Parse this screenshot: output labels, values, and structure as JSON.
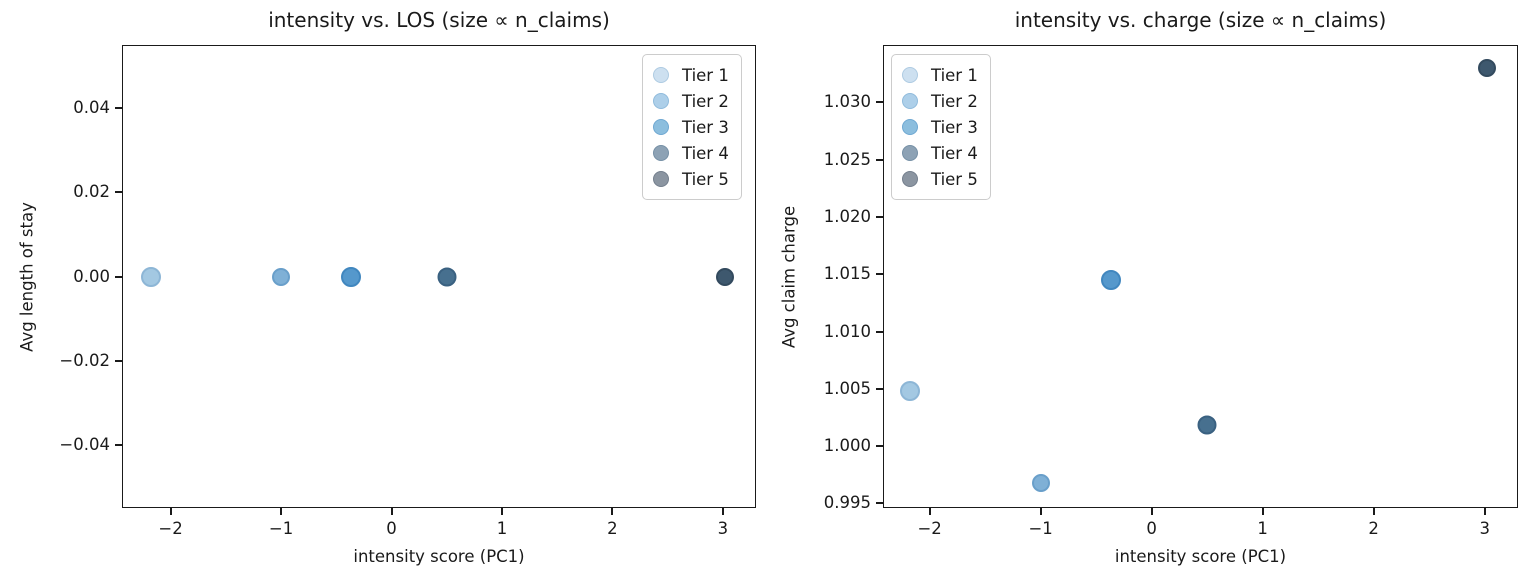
{
  "figure": {
    "background": "#ffffff",
    "axis_color": "#1a1a1a",
    "text_color": "#1a1a1a"
  },
  "tiers": [
    {
      "label": "Tier 1",
      "fill": "#a3c8e2",
      "edge": "#8db6d6",
      "legend_fill": "#cde0f0",
      "legend_edge": "#aecbe2"
    },
    {
      "label": "Tier 2",
      "fill": "#7fb0d6",
      "edge": "#699fca",
      "legend_fill": "#adcfe9",
      "legend_edge": "#90bbdc"
    },
    {
      "label": "Tier 3",
      "fill": "#5598cc",
      "edge": "#4187bf",
      "legend_fill": "#8cbede",
      "legend_edge": "#6fa8d2"
    },
    {
      "label": "Tier 4",
      "fill": "#47708f",
      "edge": "#3a6181",
      "legend_fill": "#8da2b5",
      "legend_edge": "#7690a6"
    },
    {
      "label": "Tier 5",
      "fill": "#3e586e",
      "edge": "#334a5e",
      "legend_fill": "#8b95a1",
      "legend_edge": "#747f8d"
    }
  ],
  "chart_data": [
    {
      "type": "scatter",
      "title": "intensity vs. LOS (size ∝ n_claims)",
      "xlabel": "intensity score (PC1)",
      "ylabel": "Avg length of stay",
      "xlim": [
        -2.44,
        3.3
      ],
      "ylim": [
        -0.055,
        0.055
      ],
      "grid": false,
      "legend_position": "upper right",
      "xticks": [
        {
          "v": -2,
          "label": "−2"
        },
        {
          "v": -1,
          "label": "−1"
        },
        {
          "v": 0,
          "label": "0"
        },
        {
          "v": 1,
          "label": "1"
        },
        {
          "v": 2,
          "label": "2"
        },
        {
          "v": 3,
          "label": "3"
        }
      ],
      "yticks": [
        {
          "v": 0.04,
          "label": "0.04"
        },
        {
          "v": 0.02,
          "label": "0.02"
        },
        {
          "v": 0.0,
          "label": "0.00"
        },
        {
          "v": -0.02,
          "label": "−0.02"
        },
        {
          "v": -0.04,
          "label": "−0.04"
        }
      ],
      "points": [
        {
          "tier": "Tier 1",
          "x": -2.18,
          "y": 0.0,
          "d": 20
        },
        {
          "tier": "Tier 2",
          "x": -1.0,
          "y": 0.0,
          "d": 18
        },
        {
          "tier": "Tier 3",
          "x": -0.37,
          "y": 0.0,
          "d": 20
        },
        {
          "tier": "Tier 4",
          "x": 0.5,
          "y": 0.0,
          "d": 19
        },
        {
          "tier": "Tier 5",
          "x": 3.02,
          "y": 0.0,
          "d": 18
        }
      ]
    },
    {
      "type": "scatter",
      "title": "intensity vs. charge (size ∝ n_claims)",
      "xlabel": "intensity score (PC1)",
      "ylabel": "Avg claim charge",
      "xlim": [
        -2.42,
        3.3
      ],
      "ylim": [
        0.9946,
        1.035
      ],
      "grid": false,
      "legend_position": "upper left",
      "xticks": [
        {
          "v": -2,
          "label": "−2"
        },
        {
          "v": -1,
          "label": "−1"
        },
        {
          "v": 0,
          "label": "0"
        },
        {
          "v": 1,
          "label": "1"
        },
        {
          "v": 2,
          "label": "2"
        },
        {
          "v": 3,
          "label": "3"
        }
      ],
      "yticks": [
        {
          "v": 0.995,
          "label": "0.995"
        },
        {
          "v": 1.0,
          "label": "1.000"
        },
        {
          "v": 1.005,
          "label": "1.005"
        },
        {
          "v": 1.01,
          "label": "1.010"
        },
        {
          "v": 1.015,
          "label": "1.015"
        },
        {
          "v": 1.02,
          "label": "1.020"
        },
        {
          "v": 1.025,
          "label": "1.025"
        },
        {
          "v": 1.03,
          "label": "1.030"
        }
      ],
      "points": [
        {
          "tier": "Tier 1",
          "x": -2.18,
          "y": 1.0048,
          "d": 20
        },
        {
          "tier": "Tier 2",
          "x": -1.0,
          "y": 0.9968,
          "d": 18
        },
        {
          "tier": "Tier 3",
          "x": -0.37,
          "y": 1.0145,
          "d": 20
        },
        {
          "tier": "Tier 4",
          "x": 0.5,
          "y": 1.0018,
          "d": 19
        },
        {
          "tier": "Tier 5",
          "x": 3.02,
          "y": 1.033,
          "d": 18
        }
      ]
    }
  ]
}
